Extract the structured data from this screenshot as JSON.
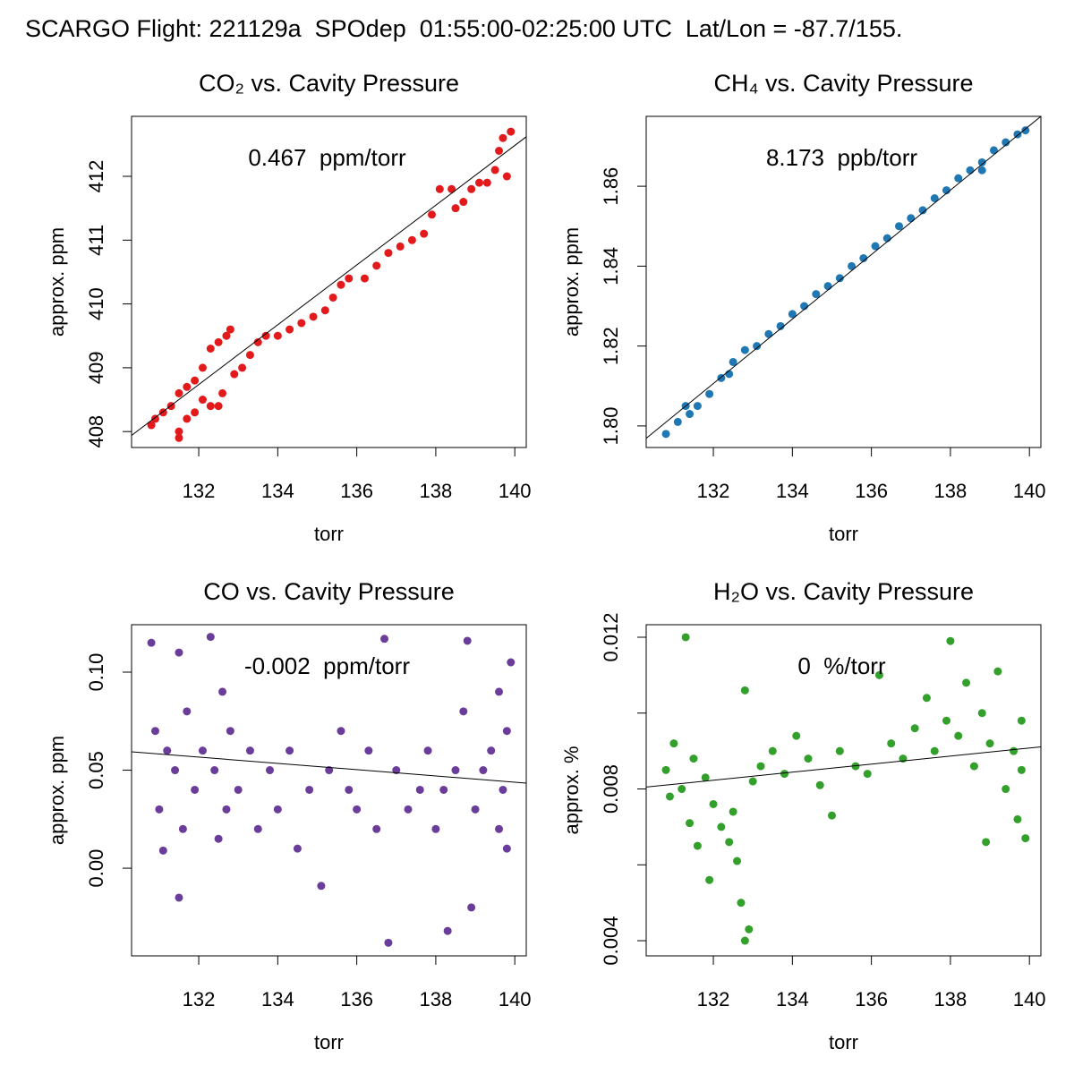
{
  "title": "SCARGO Flight: 221129a  SPOdep  01:55:00-02:25:00 UTC  Lat/Lon = -87.7/155.",
  "chart_data": [
    {
      "type": "scatter",
      "title": "CO₂ vs. Cavity Pressure",
      "annotation": "0.467  ppm/torr",
      "xlabel": "torr",
      "ylabel": "approx. ppm",
      "color": "#e31a1c",
      "x": [
        130.8,
        130.9,
        131.1,
        131.3,
        131.5,
        131.7,
        131.5,
        131.7,
        131.9,
        132.1,
        132.3,
        132.5,
        131.9,
        132.1,
        132.3,
        132.5,
        132.7,
        132.8,
        132.6,
        132.9,
        133.1,
        133.3,
        133.5,
        133.7,
        134.0,
        134.3,
        134.6,
        134.9,
        135.2,
        135.4,
        135.6,
        135.8,
        136.2,
        136.5,
        136.8,
        137.1,
        137.4,
        137.7,
        137.9,
        138.1,
        138.4,
        138.7,
        138.9,
        139.1,
        139.3,
        139.5,
        139.6,
        139.7,
        139.9,
        139.8,
        138.5,
        131.5
      ],
      "y": [
        408.1,
        408.2,
        408.3,
        408.4,
        408.6,
        408.7,
        408.0,
        408.2,
        408.3,
        408.5,
        408.4,
        408.4,
        408.8,
        409.0,
        409.3,
        409.4,
        409.5,
        409.6,
        408.6,
        408.9,
        409.0,
        409.2,
        409.4,
        409.5,
        409.5,
        409.6,
        409.7,
        409.8,
        409.9,
        410.1,
        410.3,
        410.4,
        410.4,
        410.6,
        410.8,
        410.9,
        411.0,
        411.1,
        411.4,
        411.8,
        411.8,
        411.6,
        411.8,
        411.9,
        411.9,
        412.1,
        412.4,
        412.6,
        412.7,
        412.0,
        411.5,
        407.9
      ],
      "fit": {
        "x": [
          130.3,
          140.29
        ],
        "y": [
          407.94,
          412.62
        ]
      },
      "xlim": [
        130.3,
        140.29
      ],
      "ylim": [
        407.75,
        412.94
      ],
      "xticks": [
        132,
        134,
        136,
        138,
        140
      ],
      "yticks": [
        408,
        409,
        410,
        411,
        412
      ]
    },
    {
      "type": "scatter",
      "title": "CH₄ vs. Cavity Pressure",
      "annotation": "8.173  ppb/torr",
      "xlabel": "torr",
      "ylabel": "approx. ppm",
      "color": "#1f78b4",
      "x": [
        130.8,
        131.1,
        131.4,
        131.6,
        131.9,
        132.2,
        132.5,
        132.8,
        133.1,
        133.4,
        133.7,
        134.0,
        134.3,
        134.6,
        134.9,
        135.2,
        135.5,
        135.8,
        136.1,
        136.4,
        136.7,
        137.0,
        137.3,
        137.6,
        137.9,
        138.2,
        138.5,
        138.8,
        139.1,
        139.4,
        139.7,
        139.9,
        131.3,
        132.4,
        138.8
      ],
      "y": [
        1.798,
        1.801,
        1.803,
        1.805,
        1.808,
        1.812,
        1.816,
        1.819,
        1.82,
        1.823,
        1.825,
        1.828,
        1.83,
        1.833,
        1.835,
        1.837,
        1.84,
        1.842,
        1.845,
        1.847,
        1.85,
        1.852,
        1.854,
        1.857,
        1.859,
        1.862,
        1.864,
        1.866,
        1.869,
        1.871,
        1.873,
        1.874,
        1.805,
        1.813,
        1.864
      ],
      "fit": {
        "x": [
          130.3,
          140.29
        ],
        "y": [
          1.7969,
          1.8775
        ]
      },
      "xlim": [
        130.3,
        140.29
      ],
      "ylim": [
        1.7946,
        1.8775
      ],
      "xticks": [
        132,
        134,
        136,
        138,
        140
      ],
      "yticks": [
        {
          "value": 1.8,
          "label": "1.80"
        },
        1.82,
        1.84,
        1.86
      ]
    },
    {
      "type": "scatter",
      "title": "CO vs. Cavity Pressure",
      "annotation": "-0.002  ppm/torr",
      "xlabel": "torr",
      "ylabel": "approx. ppm",
      "color": "#6a3d9a",
      "x": [
        130.8,
        130.9,
        131.0,
        131.2,
        131.4,
        131.5,
        131.6,
        131.5,
        131.7,
        131.9,
        132.1,
        132.3,
        132.4,
        132.6,
        132.7,
        132.8,
        132.5,
        133.0,
        133.3,
        133.5,
        133.8,
        134.0,
        134.3,
        134.5,
        134.8,
        135.1,
        135.3,
        135.6,
        135.8,
        136.0,
        136.3,
        136.5,
        136.7,
        136.8,
        137.0,
        137.3,
        137.6,
        137.8,
        138.0,
        138.2,
        138.3,
        138.5,
        138.7,
        138.8,
        138.9,
        139.0,
        139.2,
        139.4,
        139.6,
        139.7,
        139.8,
        139.9,
        139.8,
        139.6,
        131.1
      ],
      "y": [
        0.115,
        0.07,
        0.03,
        0.06,
        0.05,
        0.11,
        0.02,
        -0.015,
        0.08,
        0.04,
        0.06,
        0.118,
        0.05,
        0.09,
        0.03,
        0.07,
        0.015,
        0.04,
        0.06,
        0.02,
        0.05,
        0.03,
        0.06,
        0.01,
        0.04,
        -0.009,
        0.05,
        0.07,
        0.04,
        0.03,
        0.06,
        0.02,
        0.117,
        -0.038,
        0.05,
        0.03,
        0.04,
        0.06,
        0.02,
        0.04,
        -0.032,
        0.05,
        0.08,
        0.116,
        -0.02,
        0.03,
        0.05,
        0.06,
        0.02,
        0.04,
        0.07,
        0.105,
        0.01,
        0.09,
        0.009
      ],
      "fit": {
        "x": [
          130.3,
          140.29
        ],
        "y": [
          0.0594,
          0.0434
        ]
      },
      "xlim": [
        130.3,
        140.29
      ],
      "ylim": [
        -0.0447,
        0.1242
      ],
      "xticks": [
        132,
        134,
        136,
        138,
        140
      ],
      "yticks": [
        {
          "value": 0,
          "label": "0.00"
        },
        0.05,
        {
          "value": 0.1,
          "label": "0.10"
        }
      ]
    },
    {
      "type": "scatter",
      "title": "H₂O vs. Cavity Pressure",
      "annotation": "0  %/torr",
      "xlabel": "torr",
      "ylabel": "approx. %",
      "color": "#33a02c",
      "x": [
        130.8,
        130.9,
        131.0,
        131.2,
        131.3,
        131.4,
        131.5,
        131.6,
        131.8,
        132.0,
        132.2,
        132.4,
        132.5,
        132.6,
        132.7,
        132.8,
        132.8,
        133.0,
        133.2,
        133.5,
        133.8,
        134.1,
        134.4,
        134.7,
        135.0,
        135.2,
        135.6,
        135.9,
        136.2,
        136.5,
        136.8,
        137.1,
        137.4,
        137.6,
        137.9,
        138.0,
        138.2,
        138.4,
        138.6,
        138.8,
        138.9,
        139.0,
        139.2,
        139.4,
        139.6,
        139.7,
        139.8,
        139.9,
        139.8,
        131.9,
        132.9
      ],
      "y": [
        0.0085,
        0.0078,
        0.0092,
        0.008,
        0.012,
        0.0071,
        0.0088,
        0.0065,
        0.0083,
        0.0076,
        0.007,
        0.0066,
        0.0074,
        0.0061,
        0.005,
        0.004,
        0.0106,
        0.0082,
        0.0086,
        0.009,
        0.0084,
        0.0094,
        0.0088,
        0.0081,
        0.0073,
        0.009,
        0.0086,
        0.0084,
        0.011,
        0.0092,
        0.0088,
        0.0096,
        0.0104,
        0.009,
        0.0098,
        0.0119,
        0.0094,
        0.0108,
        0.0086,
        0.01,
        0.0066,
        0.0092,
        0.0111,
        0.008,
        0.009,
        0.0072,
        0.0085,
        0.0067,
        0.0098,
        0.0056,
        0.0043
      ],
      "fit": {
        "x": [
          130.3,
          140.29
        ],
        "y": [
          0.00805,
          0.00911
        ]
      },
      "xlim": [
        130.3,
        140.29
      ],
      "ylim": [
        0.0036,
        0.01233
      ],
      "xticks": [
        132,
        134,
        136,
        138,
        140
      ],
      "yticks": [
        0.004,
        0.008,
        0.012
      ],
      "yticks_minor": [
        0.006,
        0.01
      ]
    }
  ]
}
